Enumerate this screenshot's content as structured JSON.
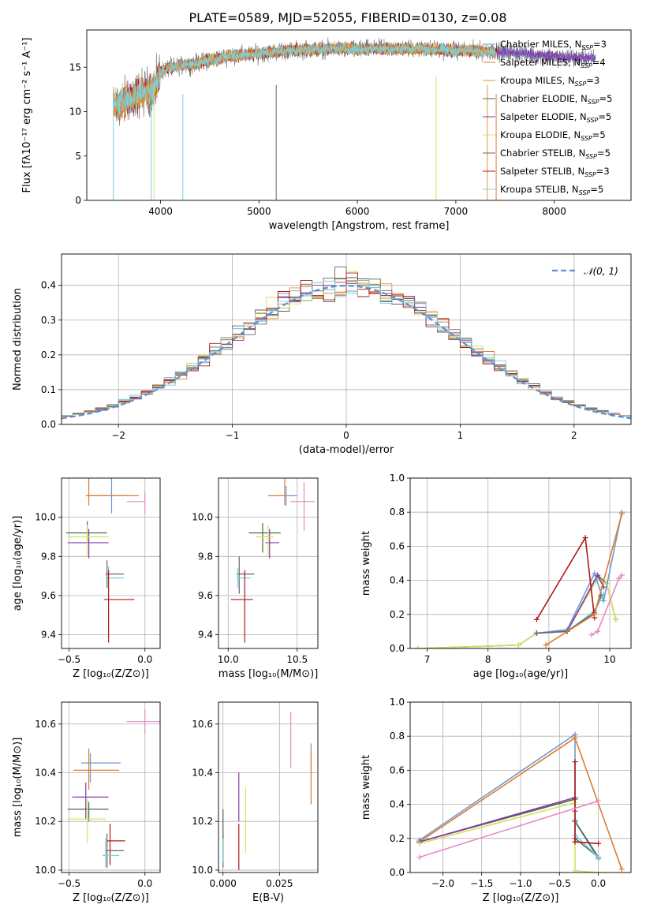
{
  "figure": {
    "title": "PLATE=0589, MJD=52055, FIBERID=0130, z=0.08"
  },
  "models": [
    {
      "name": "Chabrier MILES, N",
      "sub": "SSP",
      "suffix": "=3",
      "color": "#6e97d8"
    },
    {
      "name": "Salpeter MILES, N",
      "sub": "SSP",
      "suffix": "=4",
      "color": "#e07b2a"
    },
    {
      "name": "Kroupa MILES, N",
      "sub": "SSP",
      "suffix": "=3",
      "color": "#e3943a"
    },
    {
      "name": "Chabrier ELODIE, N",
      "sub": "SSP",
      "suffix": "=5",
      "color": "#4a6a4a"
    },
    {
      "name": "Salpeter ELODIE, N",
      "sub": "SSP",
      "suffix": "=5",
      "color": "#8a3aa8"
    },
    {
      "name": "Kroupa ELODIE, N",
      "sub": "SSP",
      "suffix": "=5",
      "color": "#d8e060"
    },
    {
      "name": "Chabrier STELIB, N",
      "sub": "SSP",
      "suffix": "=5",
      "color": "#666666"
    },
    {
      "name": "Salpeter STELIB, N",
      "sub": "SSP",
      "suffix": "=3",
      "color": "#b01818"
    },
    {
      "name": "Kroupa STELIB, N",
      "sub": "SSP",
      "suffix": "=5",
      "color": "#7ad0dc"
    }
  ],
  "chart_data": [
    {
      "id": "spectrum",
      "type": "line",
      "xlabel": "wavelength [Angstrom, rest frame]",
      "ylabel": "Flux [fλ10⁻¹⁷ erg cm⁻² s⁻¹ A⁻¹]",
      "xlim": [
        3250,
        8780
      ],
      "ylim": [
        0,
        19.2
      ],
      "xticks": [
        4000,
        5000,
        6000,
        7000,
        8000
      ],
      "yticks": [
        0,
        5,
        10,
        15
      ],
      "grid": false,
      "legend": "top-right",
      "continuum": [
        [
          3520,
          10.5
        ],
        [
          3600,
          11.0
        ],
        [
          3700,
          11.5
        ],
        [
          3800,
          12.0
        ],
        [
          3900,
          12.5
        ],
        [
          3960,
          13.0
        ],
        [
          4000,
          14.5
        ],
        [
          4100,
          15.0
        ],
        [
          4300,
          15.3
        ],
        [
          4500,
          15.8
        ],
        [
          4700,
          16.3
        ],
        [
          5000,
          16.5
        ],
        [
          5200,
          16.8
        ],
        [
          5500,
          17.0
        ],
        [
          5800,
          17.1
        ],
        [
          6000,
          17.0
        ],
        [
          6300,
          17.1
        ],
        [
          6600,
          17.1
        ],
        [
          7000,
          16.9
        ],
        [
          7400,
          16.8
        ],
        [
          7700,
          16.5
        ],
        [
          8000,
          16.2
        ],
        [
          8400,
          16.0
        ]
      ],
      "absorption_lines": [
        3934,
        4226,
        5175,
        6800,
        7410,
        3933,
        3968
      ],
      "line_depths": [
        0,
        0,
        0,
        0,
        0,
        5,
        7
      ]
    },
    {
      "id": "residuals",
      "type": "histogram",
      "xlabel": "(data-model)/error",
      "ylabel": "Normed distribution",
      "xlim": [
        -2.5,
        2.5
      ],
      "ylim": [
        0,
        0.49
      ],
      "xticks": [
        -2,
        -1,
        0,
        1,
        2
      ],
      "yticks": [
        0,
        0.1,
        0.2,
        0.3,
        0.4
      ],
      "grid": true,
      "legend": "top-right",
      "reference": {
        "label": "𝒩(0, 1)",
        "color": "#5a8fd0"
      },
      "bin_width": 0.1
    },
    {
      "id": "age_vs_Z",
      "type": "scatter",
      "xlabel": "Z [log₁₀(Z/Z⊙)]",
      "ylabel": "age  [log₁₀(age/yr)]",
      "xlim": [
        -0.55,
        0.1
      ],
      "ylim": [
        9.33,
        10.2
      ],
      "xticks": [
        -0.5,
        0.0
      ],
      "xtick_labels": [
        "−0.5",
        "0.0"
      ],
      "yticks": [
        9.4,
        9.6,
        9.8,
        10.0
      ],
      "grid": true,
      "points": [
        {
          "x": -0.22,
          "xerr": [
            0.16,
            0.12
          ],
          "y": 10.11,
          "yerr": [
            0.09,
            0.09
          ],
          "c": 0
        },
        {
          "x": -0.37,
          "xerr": [
            0.02,
            0.33
          ],
          "y": 10.11,
          "yerr": [
            0.05,
            0.1
          ],
          "c": 1
        },
        {
          "x": 0.0,
          "xerr": [
            0.12,
            0.0
          ],
          "y": 10.08,
          "yerr": [
            0.06,
            0.05
          ],
          "c": 10
        },
        {
          "x": -0.38,
          "xerr": [
            0.14,
            0.13
          ],
          "y": 9.92,
          "yerr": [
            0.05,
            0.06
          ],
          "c": 3
        },
        {
          "x": -0.37,
          "xerr": [
            0.14,
            0.13
          ],
          "y": 9.87,
          "yerr": [
            0.08,
            0.07
          ],
          "c": 4
        },
        {
          "x": -0.38,
          "xerr": [
            0.13,
            0.14
          ],
          "y": 9.9,
          "yerr": [
            0.1,
            0.06
          ],
          "c": 5
        },
        {
          "x": -0.25,
          "xerr": [
            0.01,
            0.11
          ],
          "y": 9.71,
          "yerr": [
            0.07,
            0.07
          ],
          "c": 6
        },
        {
          "x": -0.24,
          "xerr": [
            0.02,
            0.1
          ],
          "y": 9.69,
          "yerr": [
            0.06,
            0.06
          ],
          "c": 8
        },
        {
          "x": -0.24,
          "xerr": [
            0.03,
            0.17
          ],
          "y": 9.58,
          "yerr": [
            0.22,
            0.15
          ],
          "c": 7
        }
      ]
    },
    {
      "id": "age_vs_mass",
      "type": "scatter",
      "xlabel": "mass [log₁₀(M/M⊙)]",
      "ylabel": "",
      "xlim": [
        9.93,
        10.65
      ],
      "ylim": [
        9.33,
        10.2
      ],
      "xticks": [
        10.0,
        10.5
      ],
      "xtick_labels": [
        "10.0",
        "10.5"
      ],
      "yticks": [
        9.4,
        9.6,
        9.8,
        10.0
      ],
      "grid": true,
      "points": [
        {
          "x": 10.42,
          "xerr": [
            0.02,
            0.08
          ],
          "y": 10.11,
          "yerr": [
            0.05,
            0.05
          ],
          "c": 0
        },
        {
          "x": 10.41,
          "xerr": [
            0.12,
            0.0
          ],
          "y": 10.11,
          "yerr": [
            0.05,
            0.1
          ],
          "c": 1
        },
        {
          "x": 10.55,
          "xerr": [
            0.1,
            0.08
          ],
          "y": 10.08,
          "yerr": [
            0.15,
            0.1
          ],
          "c": 10
        },
        {
          "x": 10.25,
          "xerr": [
            0.1,
            0.13
          ],
          "y": 9.92,
          "yerr": [
            0.1,
            0.05
          ],
          "c": 3
        },
        {
          "x": 10.3,
          "xerr": [
            0.03,
            0.07
          ],
          "y": 9.87,
          "yerr": [
            0.08,
            0.07
          ],
          "c": 4
        },
        {
          "x": 10.29,
          "xerr": [
            0.09,
            0.04
          ],
          "y": 9.9,
          "yerr": [
            0.1,
            0.06
          ],
          "c": 5
        },
        {
          "x": 10.08,
          "xerr": [
            0.02,
            0.11
          ],
          "y": 9.71,
          "yerr": [
            0.1,
            0.09
          ],
          "c": 6
        },
        {
          "x": 10.07,
          "xerr": [
            0.01,
            0.09
          ],
          "y": 9.69,
          "yerr": [
            0.05,
            0.05
          ],
          "c": 8
        },
        {
          "x": 10.12,
          "xerr": [
            0.1,
            0.06
          ],
          "y": 9.58,
          "yerr": [
            0.22,
            0.15
          ],
          "c": 7
        }
      ]
    },
    {
      "id": "weight_vs_age",
      "type": "line",
      "xlabel": "age  [log₁₀(age/yr)]",
      "ylabel": "mass weight",
      "xlim": [
        6.72,
        10.35
      ],
      "ylim": [
        0,
        1.0
      ],
      "xticks": [
        7,
        8,
        9,
        10
      ],
      "yticks": [
        0,
        0.2,
        0.4,
        0.6,
        0.8,
        1.0
      ],
      "grid": true,
      "series": [
        {
          "c": 3,
          "points": [
            [
              6.85,
              0.0
            ],
            [
              8.5,
              0.02
            ],
            [
              8.8,
              0.09
            ],
            [
              9.3,
              0.1
            ],
            [
              9.8,
              0.43
            ],
            [
              9.95,
              0.38
            ],
            [
              10.1,
              0.17
            ]
          ]
        },
        {
          "c": 5,
          "points": [
            [
              6.85,
              0.0
            ],
            [
              8.5,
              0.02
            ],
            [
              8.8,
              0.09
            ],
            [
              9.3,
              0.1
            ],
            [
              9.8,
              0.41
            ],
            [
              9.95,
              0.38
            ],
            [
              10.1,
              0.17
            ]
          ]
        },
        {
          "c": 4,
          "points": [
            [
              8.8,
              0.09
            ],
            [
              9.3,
              0.1
            ],
            [
              9.8,
              0.43
            ],
            [
              9.9,
              0.36
            ]
          ]
        },
        {
          "c": 0,
          "points": [
            [
              8.8,
              0.09
            ],
            [
              9.3,
              0.11
            ],
            [
              9.75,
              0.44
            ],
            [
              9.9,
              0.28
            ],
            [
              10.2,
              0.8
            ]
          ]
        },
        {
          "c": 8,
          "points": [
            [
              8.8,
              0.09
            ],
            [
              9.3,
              0.1
            ],
            [
              9.75,
              0.22
            ],
            [
              9.9,
              0.32
            ]
          ]
        },
        {
          "c": 6,
          "points": [
            [
              8.8,
              0.09
            ],
            [
              9.3,
              0.1
            ],
            [
              9.75,
              0.21
            ],
            [
              9.85,
              0.31
            ]
          ]
        },
        {
          "c": 7,
          "points": [
            [
              8.8,
              0.17
            ],
            [
              9.6,
              0.65
            ],
            [
              9.75,
              0.18
            ]
          ]
        },
        {
          "c": 1,
          "points": [
            [
              8.95,
              0.02
            ],
            [
              9.75,
              0.2
            ],
            [
              10.2,
              0.79
            ]
          ]
        },
        {
          "c": 10,
          "points": [
            [
              9.7,
              0.08
            ],
            [
              9.8,
              0.1
            ],
            [
              10.15,
              0.41
            ],
            [
              10.2,
              0.43
            ]
          ]
        }
      ]
    },
    {
      "id": "mass_vs_Z",
      "type": "scatter",
      "xlabel": "Z [log₁₀(Z/Z⊙)]",
      "ylabel": "mass [log₁₀(M/M⊙)]",
      "xlim": [
        -0.55,
        0.1
      ],
      "ylim": [
        9.99,
        10.69
      ],
      "xticks": [
        -0.5,
        0.0
      ],
      "xtick_labels": [
        "−0.5",
        "0.0"
      ],
      "yticks": [
        10.0,
        10.2,
        10.4,
        10.6
      ],
      "grid": true,
      "points": [
        {
          "x": 0.0,
          "xerr": [
            0.12,
            0.12
          ],
          "y": 10.61,
          "yerr": [
            0.05,
            0.05
          ],
          "c": 10
        },
        {
          "x": -0.36,
          "xerr": [
            0.06,
            0.2
          ],
          "y": 10.44,
          "yerr": [
            0.08,
            0.04
          ],
          "c": 0
        },
        {
          "x": -0.37,
          "xerr": [
            0.1,
            0.2
          ],
          "y": 10.41,
          "yerr": [
            0.08,
            0.09
          ],
          "c": 1
        },
        {
          "x": -0.39,
          "xerr": [
            0.09,
            0.15
          ],
          "y": 10.3,
          "yerr": [
            0.09,
            0.06
          ],
          "c": 4
        },
        {
          "x": -0.37,
          "xerr": [
            0.14,
            0.13
          ],
          "y": 10.25,
          "yerr": [
            0.05,
            0.03
          ],
          "c": 3
        },
        {
          "x": -0.38,
          "xerr": [
            0.13,
            0.12
          ],
          "y": 10.21,
          "yerr": [
            0.1,
            0.08
          ],
          "c": 5
        },
        {
          "x": -0.23,
          "xerr": [
            0.02,
            0.1
          ],
          "y": 10.12,
          "yerr": [
            0.1,
            0.07
          ],
          "c": 7
        },
        {
          "x": -0.25,
          "xerr": [
            0.01,
            0.11
          ],
          "y": 10.08,
          "yerr": [
            0.07,
            0.07
          ],
          "c": 6
        },
        {
          "x": -0.26,
          "xerr": [
            0.02,
            0.09
          ],
          "y": 10.06,
          "yerr": [
            0.05,
            0.07
          ],
          "c": 8
        }
      ]
    },
    {
      "id": "mass_vs_EBV",
      "type": "scatter",
      "xlabel": "E(B-V)",
      "ylabel": "",
      "xlim": [
        -0.002,
        0.042
      ],
      "ylim": [
        9.99,
        10.69
      ],
      "xticks": [
        0.0,
        0.025
      ],
      "xtick_labels": [
        "0.000",
        "0.025"
      ],
      "yticks": [
        10.0,
        10.2,
        10.4,
        10.6
      ],
      "grid": true,
      "points": [
        {
          "x": 0.03,
          "y": 10.54,
          "yerr": [
            0.12,
            0.11
          ],
          "c": 10
        },
        {
          "x": 0.039,
          "y": 10.46,
          "yerr": [
            0.06,
            0.06
          ],
          "c": 0
        },
        {
          "x": 0.039,
          "y": 10.38,
          "yerr": [
            0.11,
            0.11
          ],
          "c": 1
        },
        {
          "x": 0.007,
          "y": 10.3,
          "yerr": [
            0.1,
            0.1
          ],
          "c": 4
        },
        {
          "x": 0.0,
          "y": 10.14,
          "yerr": [
            0.11,
            0.11
          ],
          "c": 3
        },
        {
          "x": 0.01,
          "y": 10.21,
          "yerr": [
            0.14,
            0.13
          ],
          "c": 5
        },
        {
          "x": 0.007,
          "y": 10.1,
          "yerr": [
            0.1,
            0.09
          ],
          "c": 7
        },
        {
          "x": 0.0,
          "y": 10.09,
          "yerr": [
            0.08,
            0.06
          ],
          "c": 6
        },
        {
          "x": 0.0,
          "y": 10.08,
          "yerr": [
            0.05,
            0.05
          ],
          "c": 8
        }
      ]
    },
    {
      "id": "weight_vs_Z",
      "type": "line",
      "xlabel": "Z [log₁₀(Z/Z⊙)]",
      "ylabel": "mass weight",
      "xlim": [
        -2.42,
        0.42
      ],
      "ylim": [
        0,
        1.0
      ],
      "xticks": [
        -2.0,
        -1.5,
        -1.0,
        -0.5,
        0.0
      ],
      "xtick_labels": [
        "−2.0",
        "−1.5",
        "−1.0",
        "−0.5",
        "0.0"
      ],
      "yticks": [
        0,
        0.2,
        0.4,
        0.6,
        0.8,
        1.0
      ],
      "grid": true,
      "series": [
        {
          "c": 0,
          "points": [
            [
              -2.3,
              0.19
            ],
            [
              -0.3,
              0.81
            ],
            [
              -0.3,
              0.3
            ],
            [
              0.0,
              0.08
            ]
          ]
        },
        {
          "c": 1,
          "points": [
            [
              -2.3,
              0.18
            ],
            [
              -0.3,
              0.79
            ],
            [
              0.3,
              0.02
            ]
          ]
        },
        {
          "c": 3,
          "points": [
            [
              -2.3,
              0.18
            ],
            [
              -0.3,
              0.43
            ],
            [
              -0.3,
              0.3
            ],
            [
              0.0,
              0.09
            ]
          ]
        },
        {
          "c": 4,
          "points": [
            [
              -2.3,
              0.18
            ],
            [
              -0.3,
              0.44
            ],
            [
              -0.3,
              0.36
            ]
          ]
        },
        {
          "c": 5,
          "points": [
            [
              -2.3,
              0.17
            ],
            [
              -0.3,
              0.41
            ],
            [
              -0.3,
              0.01
            ],
            [
              0.0,
              0.0
            ]
          ]
        },
        {
          "c": 6,
          "points": [
            [
              -0.3,
              0.31
            ],
            [
              -0.3,
              0.2
            ],
            [
              0.0,
              0.09
            ]
          ]
        },
        {
          "c": 8,
          "points": [
            [
              -0.3,
              0.31
            ],
            [
              -0.3,
              0.22
            ],
            [
              0.0,
              0.09
            ]
          ]
        },
        {
          "c": 7,
          "points": [
            [
              -0.3,
              0.65
            ],
            [
              -0.3,
              0.18
            ],
            [
              0.0,
              0.17
            ]
          ]
        },
        {
          "c": 10,
          "points": [
            [
              -2.3,
              0.09
            ],
            [
              0.0,
              0.42
            ]
          ]
        }
      ]
    }
  ],
  "extra_colors": {
    "10": "#e78ac3"
  }
}
